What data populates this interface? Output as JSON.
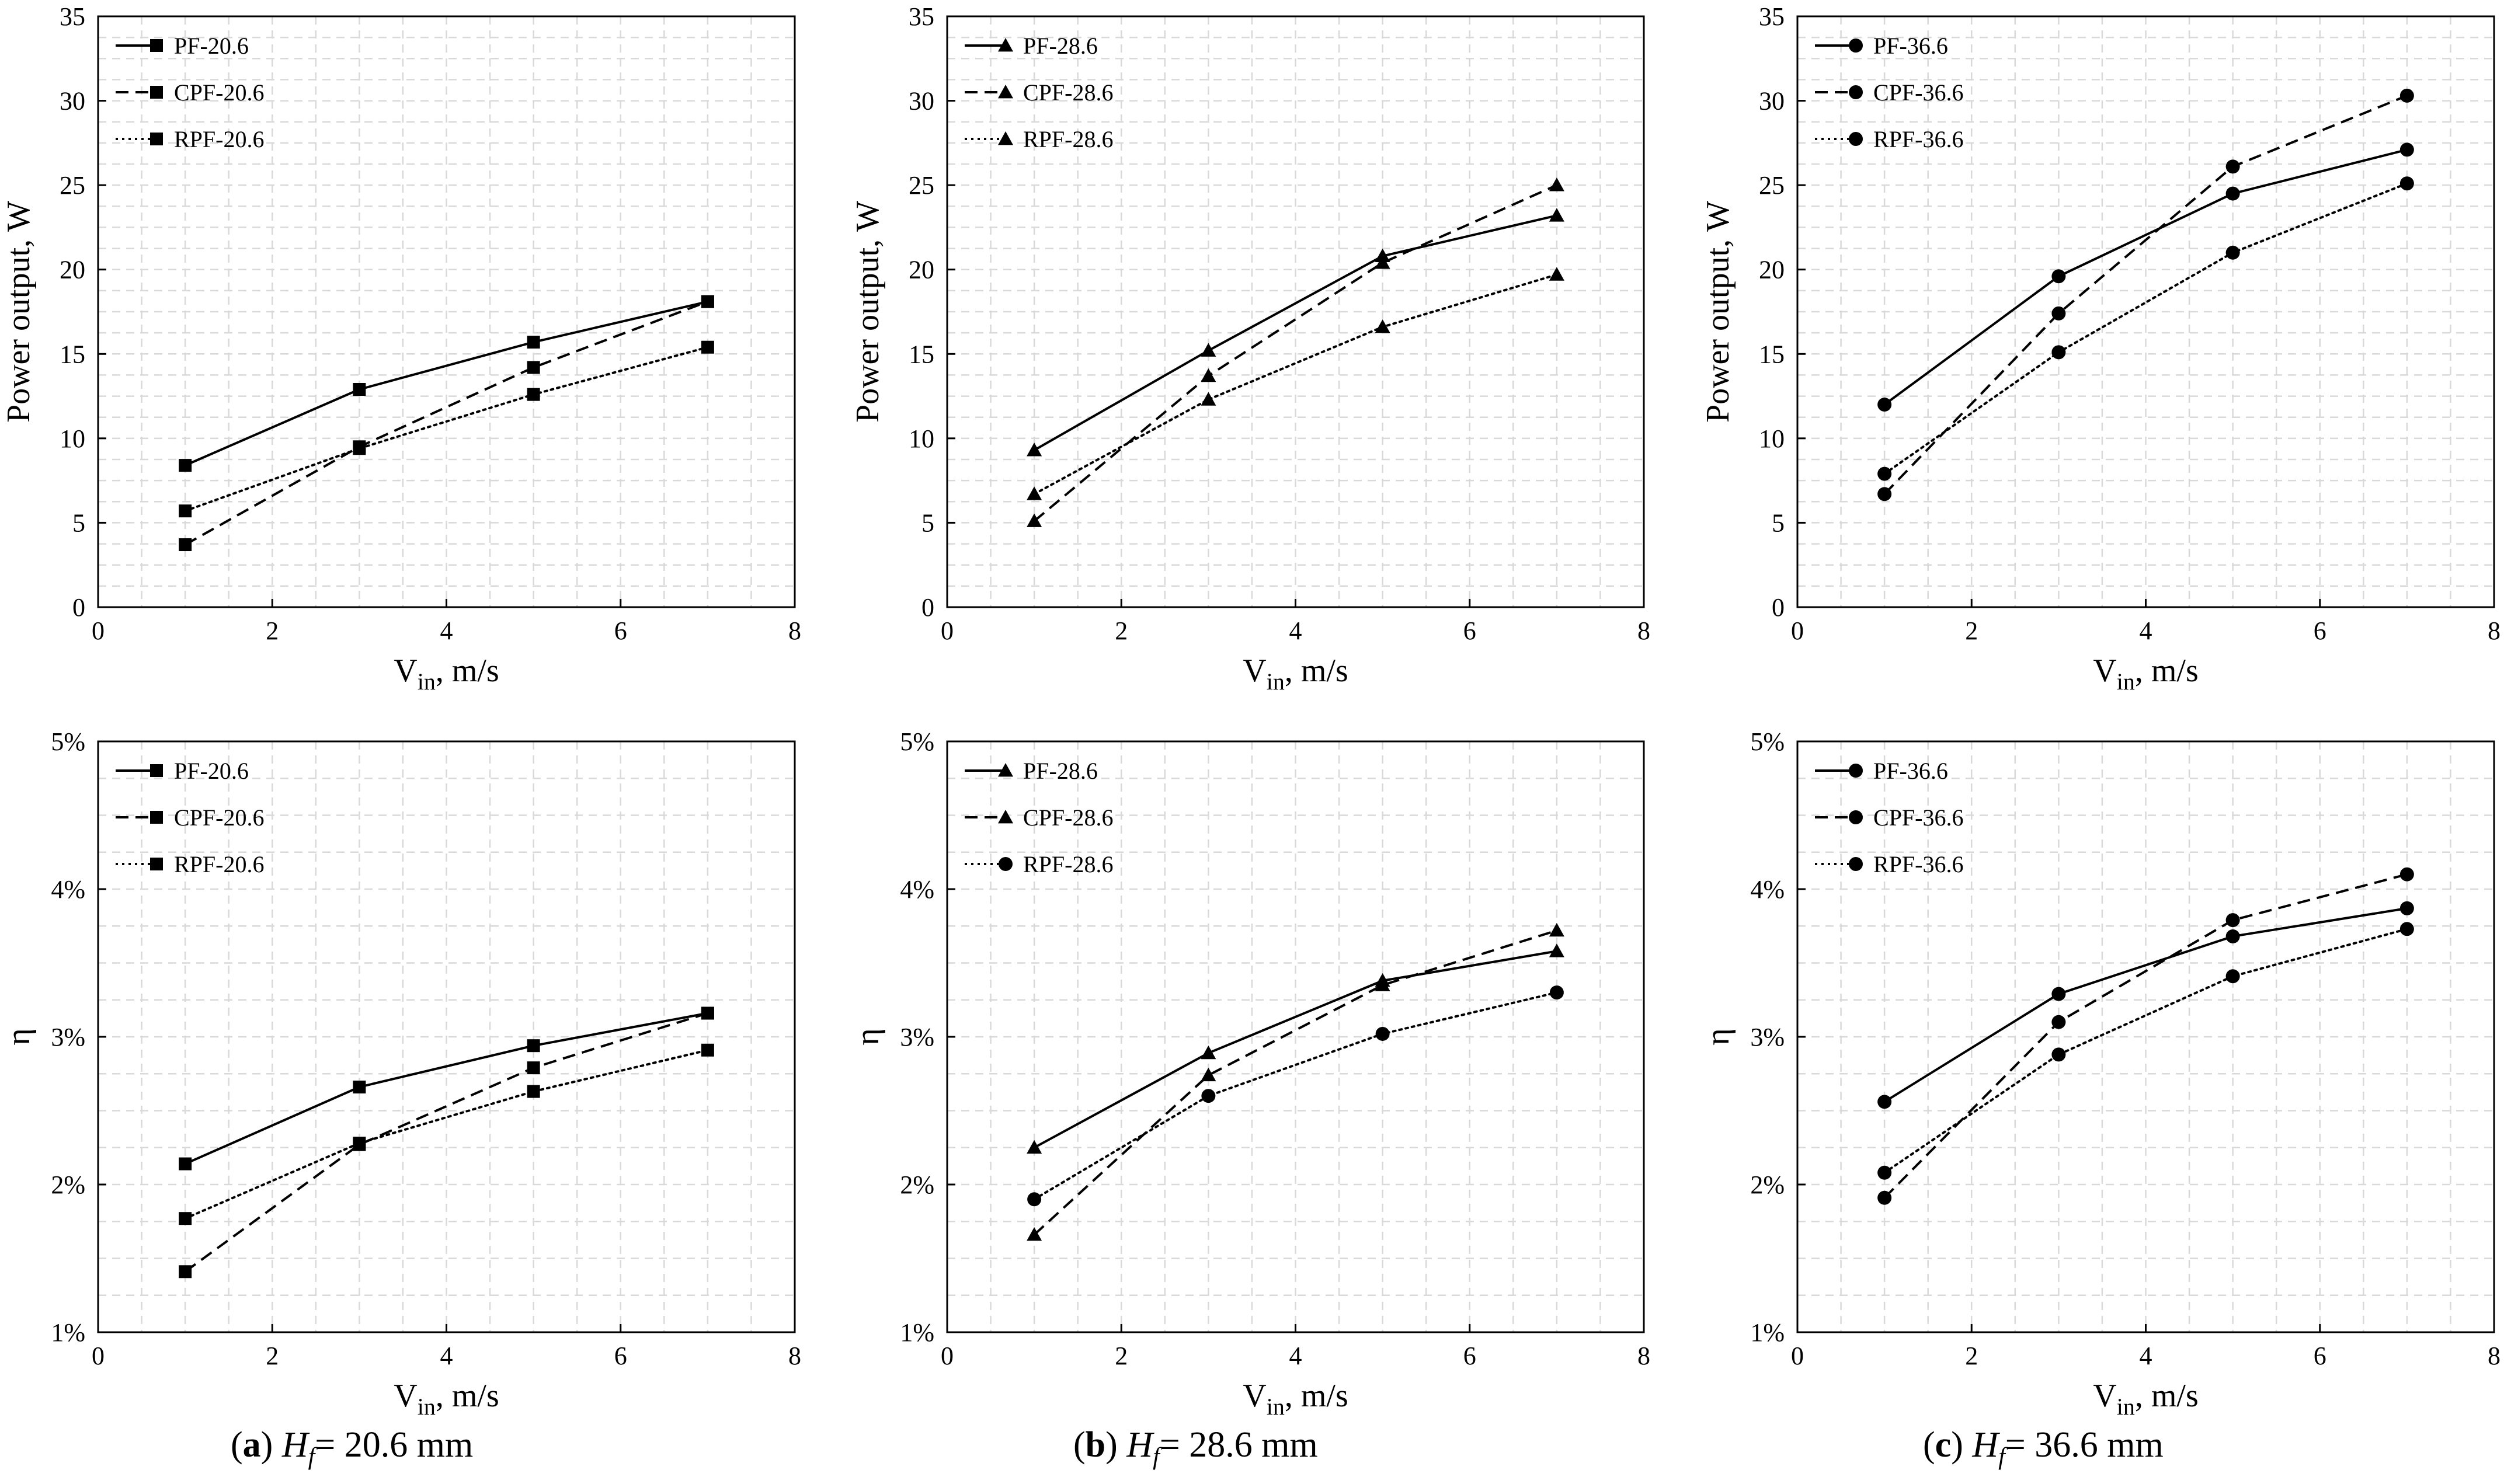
{
  "figure": {
    "captions": [
      {
        "letter": "a",
        "var": "H",
        "sub": "f",
        "text": "= 20.6 mm"
      },
      {
        "letter": "b",
        "var": "H",
        "sub": "f",
        "text": "= 28.6 mm"
      },
      {
        "letter": "c",
        "var": "H",
        "sub": "f",
        "text": "= 36.6 mm"
      }
    ]
  },
  "colors": {
    "line": "#000000",
    "grid": "#d9d9d9",
    "axis": "#000000",
    "background": "#ffffff"
  },
  "chart_data": [
    {
      "type": "line",
      "panel": "a-top",
      "xlabel": "V",
      "xlabel_sub": "in",
      "xlabel_suffix": ", m/s",
      "ylabel": "Power output, W",
      "xlim": [
        0,
        8
      ],
      "ylim": [
        0,
        35
      ],
      "xticks": [
        0,
        2,
        4,
        6,
        8
      ],
      "yticks": [
        0,
        5,
        10,
        15,
        20,
        25,
        30,
        35
      ],
      "ytick_labels": [
        "0",
        "5",
        "10",
        "15",
        "20",
        "25",
        "30",
        "35"
      ],
      "grid": true,
      "legend_position": "top-left",
      "x": [
        1,
        3,
        5,
        7
      ],
      "series": [
        {
          "name": "PF-20.6",
          "style": "solid",
          "marker": "square",
          "values": [
            8.4,
            12.9,
            15.7,
            18.1
          ]
        },
        {
          "name": "CPF-20.6",
          "style": "dashed",
          "marker": "square",
          "values": [
            3.7,
            9.5,
            14.2,
            18.1
          ]
        },
        {
          "name": "RPF-20.6",
          "style": "dotted",
          "marker": "square",
          "values": [
            5.7,
            9.4,
            12.6,
            15.4
          ]
        }
      ]
    },
    {
      "type": "line",
      "panel": "b-top",
      "xlabel": "V",
      "xlabel_sub": "in",
      "xlabel_suffix": ", m/s",
      "ylabel": "Power output, W",
      "xlim": [
        0,
        8
      ],
      "ylim": [
        0,
        35
      ],
      "xticks": [
        0,
        2,
        4,
        6,
        8
      ],
      "yticks": [
        0,
        5,
        10,
        15,
        20,
        25,
        30,
        35
      ],
      "ytick_labels": [
        "0",
        "5",
        "10",
        "15",
        "20",
        "25",
        "30",
        "35"
      ],
      "grid": true,
      "legend_position": "top-left",
      "x": [
        1,
        3,
        5,
        7
      ],
      "series": [
        {
          "name": "PF-28.6",
          "style": "solid",
          "marker": "triangle",
          "values": [
            9.3,
            15.2,
            20.8,
            23.2
          ]
        },
        {
          "name": "CPF-28.6",
          "style": "dashed",
          "marker": "triangle",
          "values": [
            5.1,
            13.7,
            20.4,
            25.0
          ]
        },
        {
          "name": "RPF-28.6",
          "style": "dotted",
          "marker": "triangle",
          "values": [
            6.7,
            12.3,
            16.6,
            19.7
          ]
        }
      ]
    },
    {
      "type": "line",
      "panel": "c-top",
      "xlabel": "V",
      "xlabel_sub": "in",
      "xlabel_suffix": ", m/s",
      "ylabel": "Power output, W",
      "xlim": [
        0,
        8
      ],
      "ylim": [
        0,
        35
      ],
      "xticks": [
        0,
        2,
        4,
        6,
        8
      ],
      "yticks": [
        0,
        5,
        10,
        15,
        20,
        25,
        30,
        35
      ],
      "ytick_labels": [
        "0",
        "5",
        "10",
        "15",
        "20",
        "25",
        "30",
        "35"
      ],
      "grid": true,
      "legend_position": "top-left",
      "x": [
        1,
        3,
        5,
        7
      ],
      "series": [
        {
          "name": "PF-36.6",
          "style": "solid",
          "marker": "circle",
          "values": [
            12.0,
            19.6,
            24.5,
            27.1
          ]
        },
        {
          "name": "CPF-36.6",
          "style": "dashed",
          "marker": "circle",
          "values": [
            6.7,
            17.4,
            26.1,
            30.3
          ]
        },
        {
          "name": "RPF-36.6",
          "style": "dotted",
          "marker": "circle",
          "values": [
            7.9,
            15.1,
            21.0,
            25.1
          ]
        }
      ]
    },
    {
      "type": "line",
      "panel": "a-bottom",
      "xlabel": "V",
      "xlabel_sub": "in",
      "xlabel_suffix": ", m/s",
      "ylabel": "η",
      "xlim": [
        0,
        8
      ],
      "ylim": [
        1,
        5
      ],
      "xticks": [
        0,
        2,
        4,
        6,
        8
      ],
      "yticks": [
        1,
        2,
        3,
        4,
        5
      ],
      "ytick_labels": [
        "1%",
        "2%",
        "3%",
        "4%",
        "5%"
      ],
      "grid": true,
      "legend_position": "top-left",
      "x": [
        1,
        3,
        5,
        7
      ],
      "series": [
        {
          "name": "PF-20.6",
          "style": "solid",
          "marker": "square",
          "values": [
            2.14,
            2.66,
            2.94,
            3.16
          ]
        },
        {
          "name": "CPF-20.6",
          "style": "dashed",
          "marker": "square",
          "values": [
            1.41,
            2.27,
            2.79,
            3.16
          ]
        },
        {
          "name": "RPF-20.6",
          "style": "dotted",
          "marker": "square",
          "values": [
            1.77,
            2.28,
            2.63,
            2.91
          ]
        }
      ]
    },
    {
      "type": "line",
      "panel": "b-bottom",
      "xlabel": "V",
      "xlabel_sub": "in",
      "xlabel_suffix": ", m/s",
      "ylabel": "η",
      "xlim": [
        0,
        8
      ],
      "ylim": [
        1,
        5
      ],
      "xticks": [
        0,
        2,
        4,
        6,
        8
      ],
      "yticks": [
        1,
        2,
        3,
        4,
        5
      ],
      "ytick_labels": [
        "1%",
        "2%",
        "3%",
        "4%",
        "5%"
      ],
      "grid": true,
      "legend_position": "top-left",
      "x": [
        1,
        3,
        5,
        7
      ],
      "series": [
        {
          "name": "PF-28.6",
          "style": "solid",
          "marker": "triangle",
          "values": [
            2.25,
            2.89,
            3.38,
            3.58
          ]
        },
        {
          "name": "CPF-28.6",
          "style": "dashed",
          "marker": "triangle",
          "values": [
            1.66,
            2.74,
            3.35,
            3.72
          ]
        },
        {
          "name": "RPF-28.6",
          "style": "dotted",
          "marker": "circle",
          "values": [
            1.9,
            2.6,
            3.02,
            3.3
          ]
        }
      ]
    },
    {
      "type": "line",
      "panel": "c-bottom",
      "xlabel": "V",
      "xlabel_sub": "in",
      "xlabel_suffix": ", m/s",
      "ylabel": "η",
      "xlim": [
        0,
        8
      ],
      "ylim": [
        1,
        5
      ],
      "xticks": [
        0,
        2,
        4,
        6,
        8
      ],
      "yticks": [
        1,
        2,
        3,
        4,
        5
      ],
      "ytick_labels": [
        "1%",
        "2%",
        "3%",
        "4%",
        "5%"
      ],
      "grid": true,
      "legend_position": "top-left",
      "x": [
        1,
        3,
        5,
        7
      ],
      "series": [
        {
          "name": "PF-36.6",
          "style": "solid",
          "marker": "circle",
          "values": [
            2.56,
            3.29,
            3.68,
            3.87
          ]
        },
        {
          "name": "CPF-36.6",
          "style": "dashed",
          "marker": "circle",
          "values": [
            1.91,
            3.1,
            3.79,
            4.1
          ]
        },
        {
          "name": "RPF-36.6",
          "style": "dotted",
          "marker": "circle",
          "values": [
            2.08,
            2.88,
            3.41,
            3.73
          ]
        }
      ]
    }
  ]
}
